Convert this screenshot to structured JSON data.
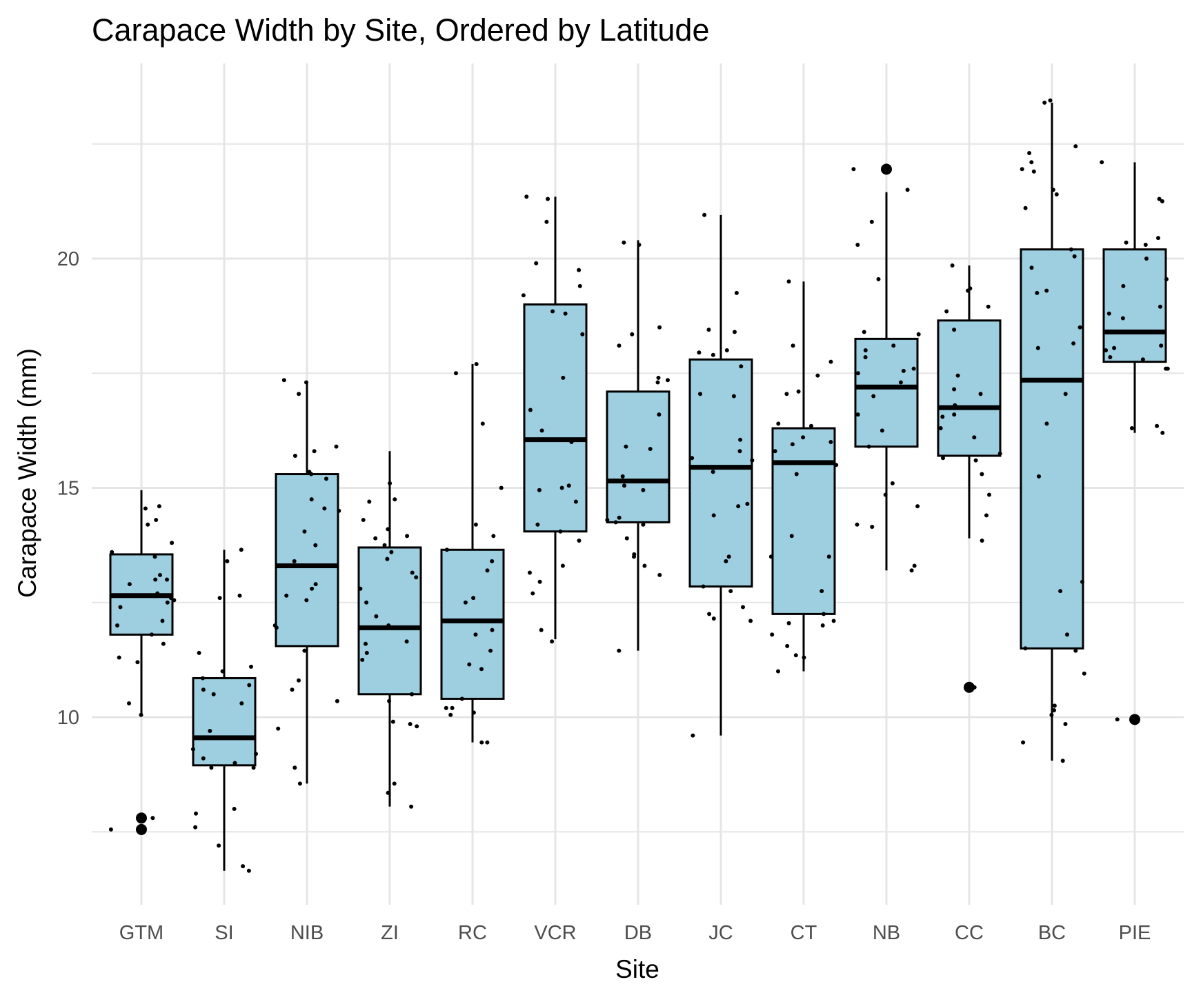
{
  "chart_data": {
    "type": "boxplot",
    "title": "Carapace Width by Site, Ordered by Latitude",
    "xlabel": "Site",
    "ylabel": "Carapace Width (mm)",
    "ylim": [
      6.2,
      24.5
    ],
    "yticks": [
      10,
      15,
      20
    ],
    "grid": true,
    "legend": "none",
    "colors": {
      "box_fill": "#9ecfe0",
      "box_stroke": "#000000",
      "grid": "#e5e5e5",
      "point": "#000000"
    },
    "categories": [
      "GTM",
      "SI",
      "NIB",
      "ZI",
      "RC",
      "VCR",
      "DB",
      "JC",
      "CT",
      "NB",
      "CC",
      "BC",
      "PIE"
    ],
    "boxes": [
      {
        "site": "GTM",
        "q1": 11.8,
        "median": 12.65,
        "q3": 13.55,
        "whisker_low": 10.05,
        "whisker_high": 14.95,
        "outliers": [
          7.8,
          7.55
        ]
      },
      {
        "site": "SI",
        "q1": 8.95,
        "median": 9.55,
        "q3": 10.85,
        "whisker_low": 6.65,
        "whisker_high": 13.65,
        "outliers": []
      },
      {
        "site": "NIB",
        "q1": 11.55,
        "median": 13.3,
        "q3": 15.3,
        "whisker_low": 8.55,
        "whisker_high": 17.3,
        "outliers": []
      },
      {
        "site": "ZI",
        "q1": 10.5,
        "median": 11.95,
        "q3": 13.7,
        "whisker_low": 8.05,
        "whisker_high": 15.8,
        "outliers": []
      },
      {
        "site": "RC",
        "q1": 10.4,
        "median": 12.1,
        "q3": 13.65,
        "whisker_low": 9.45,
        "whisker_high": 17.7,
        "outliers": []
      },
      {
        "site": "VCR",
        "q1": 14.05,
        "median": 16.05,
        "q3": 19.0,
        "whisker_low": 11.7,
        "whisker_high": 21.35,
        "outliers": []
      },
      {
        "site": "DB",
        "q1": 14.25,
        "median": 15.15,
        "q3": 17.1,
        "whisker_low": 11.45,
        "whisker_high": 20.4,
        "outliers": []
      },
      {
        "site": "JC",
        "q1": 12.85,
        "median": 15.45,
        "q3": 17.8,
        "whisker_low": 9.6,
        "whisker_high": 20.95,
        "outliers": []
      },
      {
        "site": "CT",
        "q1": 12.25,
        "median": 15.55,
        "q3": 16.3,
        "whisker_low": 11.0,
        "whisker_high": 19.5,
        "outliers": []
      },
      {
        "site": "NB",
        "q1": 15.9,
        "median": 17.2,
        "q3": 18.25,
        "whisker_low": 13.2,
        "whisker_high": 21.45,
        "outliers": [
          21.95
        ]
      },
      {
        "site": "CC",
        "q1": 15.7,
        "median": 16.75,
        "q3": 18.65,
        "whisker_low": 13.9,
        "whisker_high": 19.85,
        "outliers": [
          10.65
        ]
      },
      {
        "site": "BC",
        "q1": 11.5,
        "median": 17.35,
        "q3": 20.2,
        "whisker_low": 9.05,
        "whisker_high": 23.4,
        "outliers": []
      },
      {
        "site": "PIE",
        "q1": 17.75,
        "median": 18.4,
        "q3": 20.2,
        "whisker_low": 16.2,
        "whisker_high": 22.1,
        "outliers": [
          9.95
        ]
      }
    ],
    "jitter_points": [
      {
        "site": "GTM",
        "values": [
          13.0,
          12.1,
          13.8,
          14.6,
          14.55,
          14.3,
          14.2,
          13.6,
          13.5,
          13.1,
          13.0,
          12.9,
          12.7,
          12.6,
          12.55,
          12.5,
          12.4,
          12.0,
          11.8,
          11.6,
          11.3,
          11.2,
          10.3,
          10.05,
          7.8,
          7.55
        ]
      },
      {
        "site": "SI",
        "values": [
          13.4,
          13.65,
          12.6,
          12.65,
          11.4,
          11.1,
          11.0,
          10.85,
          10.7,
          10.6,
          10.5,
          10.3,
          9.7,
          9.3,
          9.2,
          9.1,
          9.0,
          8.9,
          8.9,
          8.0,
          7.9,
          7.6,
          7.2,
          6.75,
          6.65
        ]
      },
      {
        "site": "NIB",
        "values": [
          17.05,
          17.3,
          17.35,
          15.9,
          15.8,
          15.7,
          15.35,
          15.3,
          15.2,
          14.75,
          14.55,
          14.5,
          14.05,
          13.75,
          13.4,
          12.9,
          12.8,
          12.65,
          12.55,
          12.0,
          11.95,
          11.45,
          10.8,
          10.6,
          10.35,
          9.75,
          8.9,
          8.55
        ]
      },
      {
        "site": "ZI",
        "values": [
          15.1,
          14.75,
          14.7,
          14.3,
          14.1,
          13.95,
          13.9,
          13.75,
          13.6,
          13.45,
          13.15,
          13.05,
          12.8,
          12.5,
          12.2,
          12.0,
          11.65,
          11.6,
          11.4,
          11.25,
          10.5,
          10.35,
          9.9,
          9.85,
          9.8,
          8.55,
          8.35,
          8.05
        ]
      },
      {
        "site": "RC",
        "values": [
          17.7,
          17.5,
          16.4,
          15.0,
          14.2,
          13.95,
          13.65,
          13.4,
          13.2,
          12.6,
          12.5,
          11.9,
          11.8,
          11.45,
          11.15,
          11.05,
          10.4,
          10.2,
          10.2,
          10.1,
          10.05,
          9.45,
          9.45
        ]
      },
      {
        "site": "VCR",
        "values": [
          21.35,
          21.3,
          20.8,
          19.9,
          19.75,
          19.4,
          19.2,
          18.85,
          18.8,
          18.35,
          17.4,
          16.7,
          16.25,
          16.0,
          15.05,
          15.0,
          14.95,
          14.7,
          14.2,
          14.05,
          13.85,
          13.3,
          13.15,
          12.95,
          12.7,
          11.9,
          11.65
        ]
      },
      {
        "site": "DB",
        "values": [
          20.35,
          20.3,
          18.5,
          18.35,
          18.1,
          17.4,
          17.35,
          17.3,
          16.6,
          15.9,
          15.85,
          15.25,
          15.15,
          15.05,
          14.95,
          14.35,
          14.3,
          14.25,
          14.2,
          13.9,
          13.55,
          13.5,
          13.3,
          13.1,
          11.45
        ]
      },
      {
        "site": "JC",
        "values": [
          20.95,
          19.25,
          18.45,
          18.4,
          18.0,
          17.95,
          17.9,
          17.65,
          17.05,
          17.0,
          16.05,
          15.8,
          15.65,
          15.6,
          15.35,
          14.65,
          14.6,
          14.4,
          13.5,
          13.4,
          12.85,
          12.75,
          12.4,
          12.25,
          12.15,
          12.1,
          9.6
        ]
      },
      {
        "site": "CT",
        "values": [
          19.5,
          18.1,
          17.75,
          17.45,
          17.1,
          17.05,
          16.4,
          16.35,
          16.1,
          16.0,
          15.95,
          15.8,
          15.55,
          15.5,
          15.3,
          13.95,
          13.5,
          13.5,
          12.75,
          12.25,
          12.1,
          12.05,
          12.0,
          11.8,
          11.55,
          11.35,
          11.3,
          11.0
        ]
      },
      {
        "site": "NB",
        "values": [
          21.95,
          21.5,
          20.8,
          20.3,
          19.55,
          18.4,
          18.35,
          18.1,
          18.0,
          17.85,
          17.6,
          17.55,
          17.5,
          17.3,
          17.0,
          16.6,
          16.25,
          15.9,
          15.1,
          14.85,
          14.6,
          14.2,
          14.15,
          13.3,
          13.2
        ]
      },
      {
        "site": "CC",
        "values": [
          19.85,
          19.35,
          19.3,
          18.95,
          18.85,
          18.45,
          17.45,
          17.15,
          17.05,
          16.8,
          16.6,
          16.55,
          16.3,
          16.1,
          15.75,
          15.65,
          15.6,
          15.3,
          14.85,
          14.4,
          13.85,
          10.65
        ]
      },
      {
        "site": "BC",
        "values": [
          23.45,
          23.4,
          22.45,
          22.3,
          22.1,
          21.95,
          21.9,
          21.5,
          21.4,
          21.1,
          20.2,
          20.05,
          19.8,
          19.3,
          19.25,
          18.5,
          18.15,
          18.05,
          17.05,
          16.4,
          15.25,
          12.95,
          12.75,
          11.8,
          11.5,
          11.45,
          10.95,
          10.25,
          10.15,
          10.05,
          9.85,
          9.45,
          9.05
        ]
      },
      {
        "site": "PIE",
        "values": [
          22.1,
          21.3,
          21.25,
          20.45,
          20.35,
          20.3,
          20.0,
          19.55,
          19.4,
          18.95,
          18.8,
          18.7,
          18.1,
          18.05,
          18.0,
          17.85,
          17.8,
          17.6,
          17.6,
          16.35,
          16.3,
          16.2,
          9.95
        ]
      }
    ]
  }
}
